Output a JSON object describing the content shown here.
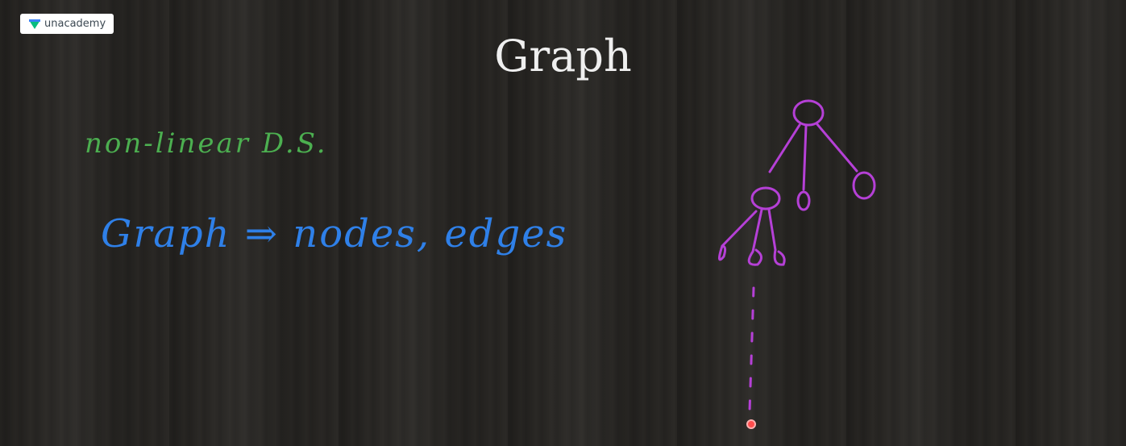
{
  "logo": {
    "text": "unacademy"
  },
  "slide": {
    "title": "Graph",
    "notes": [
      "non-linear D.S.",
      "Graph ⇒ nodes, edges"
    ]
  }
}
